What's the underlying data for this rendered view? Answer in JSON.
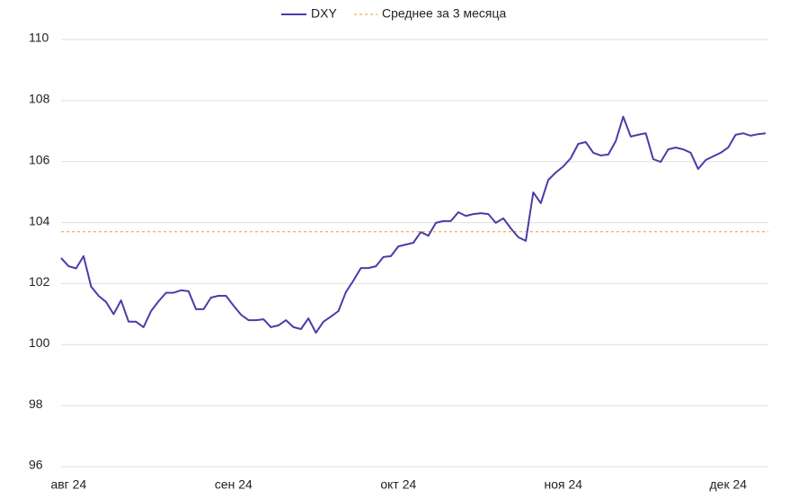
{
  "chart_data": {
    "type": "line",
    "categories": [
      null,
      "авг 24",
      null,
      null,
      null,
      null,
      null,
      null,
      null,
      null,
      null,
      null,
      null,
      null,
      null,
      null,
      null,
      null,
      null,
      null,
      null,
      null,
      null,
      "сен 24",
      null,
      null,
      null,
      null,
      null,
      null,
      null,
      null,
      null,
      null,
      null,
      null,
      null,
      null,
      null,
      null,
      null,
      null,
      null,
      null,
      null,
      "окт 24",
      null,
      null,
      null,
      null,
      null,
      null,
      null,
      null,
      null,
      null,
      null,
      null,
      null,
      null,
      null,
      null,
      null,
      null,
      null,
      null,
      null,
      "ноя 24",
      null,
      null,
      null,
      null,
      null,
      null,
      null,
      null,
      null,
      null,
      null,
      null,
      null,
      null,
      null,
      null,
      null,
      null,
      null,
      null,
      null,
      "дек 24",
      null,
      null,
      null,
      null,
      null
    ],
    "series": [
      {
        "name": "DXY",
        "color": "#4b3ca7",
        "values": [
          102.84,
          102.57,
          102.5,
          102.9,
          101.9,
          101.6,
          101.4,
          101.0,
          101.45,
          100.75,
          100.75,
          100.57,
          101.1,
          101.42,
          101.7,
          101.7,
          101.78,
          101.75,
          101.16,
          101.16,
          101.54,
          101.6,
          101.6,
          101.28,
          100.98,
          100.8,
          100.8,
          100.83,
          100.57,
          100.63,
          100.8,
          100.57,
          100.51,
          100.86,
          100.39,
          100.75,
          100.92,
          101.1,
          101.72,
          102.1,
          102.51,
          102.51,
          102.57,
          102.87,
          102.9,
          103.22,
          103.28,
          103.34,
          103.69,
          103.57,
          103.99,
          104.05,
          104.05,
          104.34,
          104.22,
          104.28,
          104.31,
          104.28,
          103.99,
          104.14,
          103.81,
          103.52,
          103.4,
          104.99,
          104.64,
          105.4,
          105.64,
          105.84,
          106.11,
          106.58,
          106.64,
          106.29,
          106.2,
          106.23,
          106.67,
          107.47,
          106.82,
          106.88,
          106.93,
          106.08,
          105.99,
          106.4,
          106.46,
          106.4,
          106.29,
          105.76,
          106.05,
          106.17,
          106.29,
          106.46,
          106.88,
          106.93,
          106.85,
          106.9,
          106.93
        ]
      }
    ],
    "average": {
      "name": "Среднее за 3 месяца",
      "color": "#e0a030",
      "value": 103.7
    },
    "ylim": [
      96,
      110
    ],
    "yticks": [
      96,
      98,
      100,
      102,
      104,
      106,
      108,
      110
    ],
    "grid": true
  }
}
